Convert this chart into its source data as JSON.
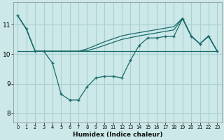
{
  "xlabel": "Humidex (Indice chaleur)",
  "background_color": "#cce8e8",
  "grid_color": "#aad0d0",
  "line_color": "#1a6b6b",
  "xlim": [
    -0.5,
    23.5
  ],
  "ylim": [
    7.7,
    11.75
  ],
  "yticks": [
    8,
    9,
    10,
    11
  ],
  "xticks": [
    0,
    1,
    2,
    3,
    4,
    5,
    6,
    7,
    8,
    9,
    10,
    11,
    12,
    13,
    14,
    15,
    16,
    17,
    18,
    19,
    20,
    21,
    22,
    23
  ],
  "y_main": [
    11.3,
    10.85,
    10.1,
    10.1,
    9.7,
    8.65,
    8.45,
    8.45,
    8.9,
    9.2,
    9.25,
    9.25,
    9.2,
    9.8,
    10.3,
    10.55,
    10.55,
    10.6,
    10.6,
    11.2,
    10.6,
    10.35,
    10.6,
    10.1
  ],
  "y_flat": [
    10.1,
    10.1,
    10.1,
    10.1,
    10.1,
    10.1,
    10.1,
    10.1,
    10.1,
    10.1,
    10.1,
    10.1,
    10.1,
    10.1,
    10.1,
    10.1,
    10.1,
    10.1,
    10.1,
    10.1,
    10.1,
    10.1,
    10.1,
    10.1
  ],
  "y_rise1": [
    11.3,
    10.85,
    10.1,
    10.1,
    10.1,
    10.1,
    10.1,
    10.1,
    10.18,
    10.3,
    10.42,
    10.52,
    10.62,
    10.68,
    10.73,
    10.78,
    10.83,
    10.88,
    10.93,
    11.22,
    10.62,
    10.35,
    10.62,
    10.1
  ],
  "y_rise2": [
    11.3,
    10.85,
    10.1,
    10.1,
    10.1,
    10.1,
    10.1,
    10.1,
    10.12,
    10.2,
    10.3,
    10.4,
    10.5,
    10.56,
    10.62,
    10.67,
    10.72,
    10.77,
    10.82,
    11.22,
    10.62,
    10.35,
    10.62,
    10.1
  ]
}
